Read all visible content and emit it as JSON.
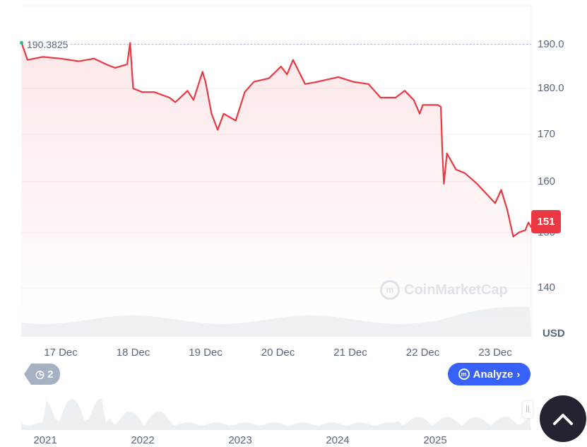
{
  "chart_data": {
    "type": "line",
    "currency": "USD",
    "y_ticks": [
      140,
      150,
      160,
      170,
      180,
      190
    ],
    "y_tick_labels": [
      "140",
      "150",
      "160",
      "170",
      "180.0",
      "190.0"
    ],
    "x_tick_labels": [
      "17 Dec",
      "18 Dec",
      "19 Dec",
      "20 Dec",
      "21 Dec",
      "22 Dec",
      "23 Dec"
    ],
    "high_label": "190.3825",
    "current_price": "151",
    "line_color": "#ea3943",
    "high_marker_color": "#16c784",
    "grid": true,
    "points": [
      [
        "16 Dec 11:00",
        190.4
      ],
      [
        "16 Dec 13:00",
        186.5
      ],
      [
        "16 Dec 18:00",
        187.2
      ],
      [
        "17 Dec 00:00",
        186.8
      ],
      [
        "17 Dec 06:00",
        186.2
      ],
      [
        "17 Dec 11:00",
        186.8
      ],
      [
        "17 Dec 15:00",
        185.5
      ],
      [
        "17 Dec 18:00",
        184.7
      ],
      [
        "17 Dec 22:00",
        185.5
      ],
      [
        "17 Dec 23:00",
        190.38
      ],
      [
        "18 Dec 00:00",
        180
      ],
      [
        "18 Dec 03:00",
        179.2
      ],
      [
        "18 Dec 07:00",
        179.2
      ],
      [
        "18 Dec 12:00",
        178
      ],
      [
        "18 Dec 14:00",
        177
      ],
      [
        "18 Dec 18:00",
        179.5
      ],
      [
        "18 Dec 20:00",
        177.5
      ],
      [
        "18 Dec 23:00",
        183.8
      ],
      [
        "19 Dec 00:00",
        181.5
      ],
      [
        "19 Dec 02:00",
        174.5
      ],
      [
        "19 Dec 04:00",
        171
      ],
      [
        "19 Dec 06:00",
        174.5
      ],
      [
        "19 Dec 10:00",
        173
      ],
      [
        "19 Dec 13:00",
        179.2
      ],
      [
        "19 Dec 16:00",
        181.5
      ],
      [
        "19 Dec 21:00",
        182.3
      ],
      [
        "20 Dec 01:00",
        185
      ],
      [
        "20 Dec 03:00",
        183.2
      ],
      [
        "20 Dec 05:00",
        186.5
      ],
      [
        "20 Dec 09:00",
        181
      ],
      [
        "20 Dec 13:00",
        181.5
      ],
      [
        "20 Dec 20:00",
        182.6
      ],
      [
        "21 Dec 01:00",
        181.5
      ],
      [
        "21 Dec 06:00",
        181
      ],
      [
        "21 Dec 10:00",
        178
      ],
      [
        "21 Dec 15:00",
        178
      ],
      [
        "21 Dec 18:00",
        179.5
      ],
      [
        "21 Dec 21:00",
        177.5
      ],
      [
        "21 Dec 23:00",
        174.5
      ],
      [
        "22 Dec 00:00",
        176.4
      ],
      [
        "22 Dec 05:00",
        176.4
      ],
      [
        "22 Dec 06:00",
        176
      ],
      [
        "22 Dec 06:30",
        166
      ],
      [
        "22 Dec 07:00",
        159.6
      ],
      [
        "22 Dec 08:00",
        166
      ],
      [
        "22 Dec 11:00",
        162.6
      ],
      [
        "22 Dec 14:00",
        161.8
      ],
      [
        "22 Dec 18:00",
        159.6
      ],
      [
        "22 Dec 21:00",
        157.7
      ],
      [
        "23 Dec 00:00",
        155.8
      ],
      [
        "23 Dec 02:00",
        158.4
      ],
      [
        "23 Dec 04:00",
        154.5
      ],
      [
        "23 Dec 06:00",
        149.3
      ],
      [
        "23 Dec 08:00",
        150.1
      ],
      [
        "23 Dec 10:00",
        150.5
      ],
      [
        "23 Dec 11:00",
        152
      ],
      [
        "23 Dec 12:00",
        151
      ]
    ]
  },
  "navigator": {
    "year_labels": [
      "2021",
      "2022",
      "2023",
      "2024",
      "2025"
    ]
  },
  "watermark": "CoinMarketCap",
  "history_badge": {
    "count": "2"
  },
  "analyze_button": {
    "label": "Analyze",
    "chevron": "›"
  },
  "icons": {
    "history": "history-clock-icon",
    "analyze": "cmc-ai-icon",
    "scroll_top": "chevron-up-icon"
  }
}
